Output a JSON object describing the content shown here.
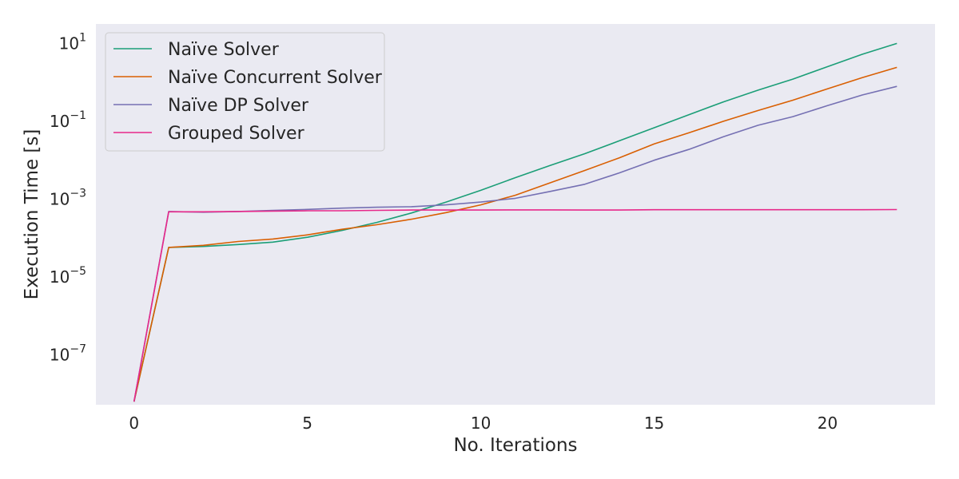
{
  "chart_data": {
    "type": "line",
    "xlabel": "No. Iterations",
    "ylabel": "Execution Time [s]",
    "yscale": "log",
    "xlim": [
      -1.1,
      23.1
    ],
    "ylim": [
      5e-09,
      30
    ],
    "x_ticks": [
      0,
      5,
      10,
      15,
      20
    ],
    "y_ticks": [
      {
        "value": 1e-07,
        "base": "10",
        "exp": "−7"
      },
      {
        "value": 1e-05,
        "base": "10",
        "exp": "−5"
      },
      {
        "value": 0.001,
        "base": "10",
        "exp": "−3"
      },
      {
        "value": 0.1,
        "base": "10",
        "exp": "−1"
      },
      {
        "value": 10,
        "base": "10",
        "exp": "1"
      }
    ],
    "grid": false,
    "legend_position": "top-left",
    "background": "#eaeaf2",
    "x": [
      0,
      1,
      2,
      3,
      4,
      5,
      6,
      7,
      8,
      9,
      10,
      11,
      12,
      13,
      14,
      15,
      16,
      17,
      18,
      19,
      20,
      21,
      22
    ],
    "series": [
      {
        "name": "Naïve Solver",
        "color": "#1b9e77",
        "values": [
          6e-09,
          5.5e-05,
          5.8e-05,
          6.5e-05,
          7.5e-05,
          0.0001,
          0.00015,
          0.00024,
          0.00042,
          0.0008,
          0.0016,
          0.0034,
          0.007,
          0.014,
          0.03,
          0.065,
          0.14,
          0.3,
          0.6,
          1.15,
          2.4,
          5.0,
          9.5
        ]
      },
      {
        "name": "Naïve Concurrent Solver",
        "color": "#d95f02",
        "values": [
          6e-09,
          5.5e-05,
          6.2e-05,
          7.8e-05,
          9e-05,
          0.000115,
          0.00016,
          0.00021,
          0.00029,
          0.00043,
          0.00068,
          0.0012,
          0.0025,
          0.0052,
          0.011,
          0.025,
          0.048,
          0.095,
          0.18,
          0.33,
          0.65,
          1.25,
          2.3
        ]
      },
      {
        "name": "Naïve DP Solver",
        "color": "#7570b3",
        "values": [
          6e-09,
          0.00046,
          0.00044,
          0.00046,
          0.00049,
          0.00052,
          0.00056,
          0.00059,
          0.00061,
          0.00068,
          0.0008,
          0.001,
          0.0015,
          0.0023,
          0.0045,
          0.0095,
          0.018,
          0.038,
          0.075,
          0.125,
          0.24,
          0.45,
          0.75
        ]
      },
      {
        "name": "Grouped Solver",
        "color": "#e7298a",
        "values": [
          6e-09,
          0.00045,
          0.00045,
          0.00046,
          0.00047,
          0.00048,
          0.00048,
          0.00049,
          0.0005,
          0.0005,
          0.0005,
          0.000505,
          0.000505,
          0.0005,
          0.0005,
          0.00051,
          0.00051,
          0.00051,
          0.00051,
          0.00051,
          0.00051,
          0.00051,
          0.000515
        ]
      }
    ]
  }
}
